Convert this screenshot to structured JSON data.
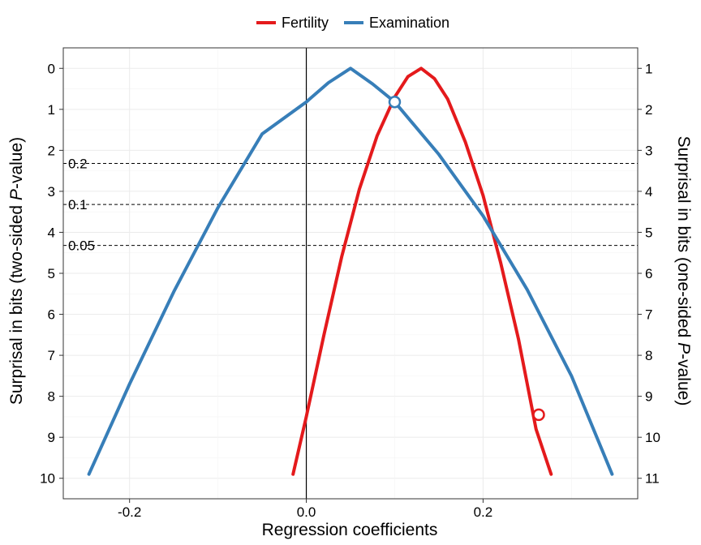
{
  "chart_data": {
    "type": "line",
    "xlabel": "Regression coefficients",
    "ylabel_left_prefix": "Surprisal in bits (two-sided ",
    "ylabel_left_p": "P",
    "ylabel_left_suffix": "-value)",
    "ylabel_right_prefix": "Surprisal in bits (one-sided ",
    "ylabel_right_p": "P",
    "ylabel_right_suffix": "-value)",
    "xlim": [
      -0.275,
      0.375
    ],
    "ylim": [
      0,
      10.5
    ],
    "y_reversed": true,
    "x_ticks": [
      -0.2,
      0.0,
      0.2
    ],
    "x_tick_labels": [
      "-0.2",
      "0.0",
      "0.2"
    ],
    "y_ticks": [
      0,
      1,
      2,
      3,
      4,
      5,
      6,
      7,
      8,
      9,
      10
    ],
    "y_tick_labels_left": [
      "0",
      "1",
      "2",
      "3",
      "4",
      "5",
      "6",
      "7",
      "8",
      "9",
      "10"
    ],
    "y_tick_labels_right": [
      "1",
      "2",
      "3",
      "4",
      "5",
      "6",
      "7",
      "8",
      "9",
      "10",
      "11"
    ],
    "grid": true,
    "legend_position": "top",
    "reference_lines": [
      {
        "label": "0.2",
        "y": 2.32
      },
      {
        "label": "0.1",
        "y": 3.32
      },
      {
        "label": "0.05",
        "y": 4.32
      }
    ],
    "vertical_line_x": 0.0,
    "series": [
      {
        "name": "Fertility",
        "color": "#E41A1C",
        "x": [
          -0.015,
          0.0,
          0.02,
          0.04,
          0.06,
          0.08,
          0.1,
          0.115,
          0.13,
          0.145,
          0.16,
          0.18,
          0.2,
          0.22,
          0.24,
          0.26,
          0.277
        ],
        "y": [
          9.9,
          8.5,
          6.5,
          4.6,
          2.95,
          1.65,
          0.7,
          0.2,
          0.0,
          0.25,
          0.75,
          1.8,
          3.1,
          4.75,
          6.6,
          8.8,
          9.9
        ],
        "marker": {
          "x": 0.263,
          "y": 8.45
        }
      },
      {
        "name": "Examination",
        "color": "#377EB8",
        "x": [
          -0.246,
          -0.2,
          -0.15,
          -0.1,
          -0.05,
          0.0,
          0.025,
          0.05,
          0.075,
          0.1,
          0.15,
          0.2,
          0.25,
          0.3,
          0.346
        ],
        "y": [
          9.9,
          7.7,
          5.45,
          3.4,
          1.6,
          0.82,
          0.35,
          0.0,
          0.38,
          0.82,
          2.1,
          3.6,
          5.4,
          7.5,
          9.9
        ],
        "marker": {
          "x": 0.1,
          "y": 0.82
        }
      }
    ]
  }
}
